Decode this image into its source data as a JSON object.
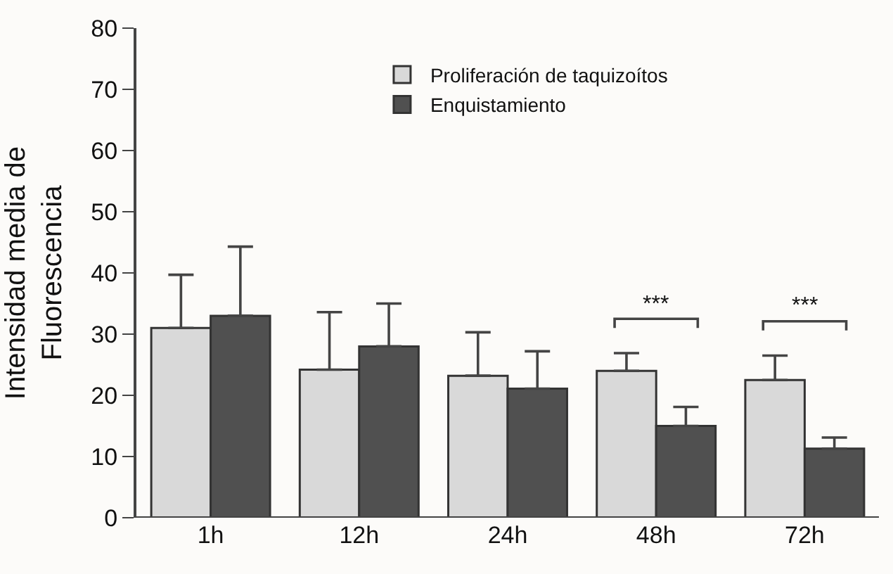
{
  "chart_data": {
    "type": "bar",
    "ylabel": "Intensidad media de\nFluorescencia",
    "categories": [
      "1h",
      "12h",
      "24h",
      "48h",
      "72h"
    ],
    "series": [
      {
        "name": "Proliferación de taquizoítos",
        "color": "#d9d9d9",
        "values": [
          31,
          24.2,
          23.2,
          24,
          22.5
        ],
        "errors": [
          [
            31,
            39.7
          ],
          [
            24.2,
            33.6
          ],
          [
            23.2,
            30.3
          ],
          [
            24,
            26.9
          ],
          [
            22.5,
            26.5
          ]
        ]
      },
      {
        "name": "Enquistamiento",
        "color": "#505050",
        "values": [
          33,
          28,
          21.1,
          15,
          11.3
        ],
        "errors": [
          [
            33,
            44.3
          ],
          [
            28,
            35
          ],
          [
            21.1,
            27.2
          ],
          [
            15,
            18.1
          ],
          [
            11.3,
            13.1
          ]
        ]
      }
    ],
    "ylim": [
      0,
      80
    ],
    "yticks": [
      0,
      10,
      20,
      30,
      40,
      50,
      60,
      70,
      80
    ],
    "grid": false,
    "legend": "top",
    "annotations": [
      "***",
      "***"
    ]
  }
}
